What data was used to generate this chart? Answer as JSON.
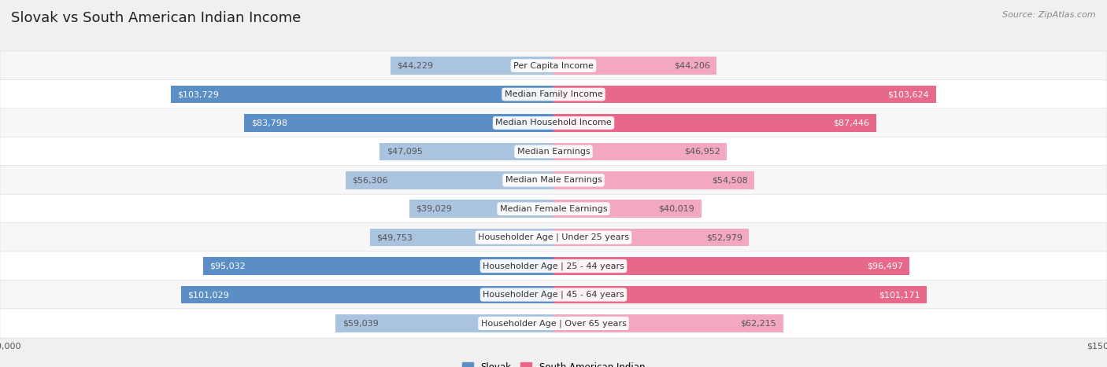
{
  "title": "Slovak vs South American Indian Income",
  "source": "Source: ZipAtlas.com",
  "categories": [
    "Per Capita Income",
    "Median Family Income",
    "Median Household Income",
    "Median Earnings",
    "Median Male Earnings",
    "Median Female Earnings",
    "Householder Age | Under 25 years",
    "Householder Age | 25 - 44 years",
    "Householder Age | 45 - 64 years",
    "Householder Age | Over 65 years"
  ],
  "slovak_values": [
    44229,
    103729,
    83798,
    47095,
    56306,
    39029,
    49753,
    95032,
    101029,
    59039
  ],
  "south_american_values": [
    44206,
    103624,
    87446,
    46952,
    54508,
    40019,
    52979,
    96497,
    101171,
    62215
  ],
  "slovak_labels": [
    "$44,229",
    "$103,729",
    "$83,798",
    "$47,095",
    "$56,306",
    "$39,029",
    "$49,753",
    "$95,032",
    "$101,029",
    "$59,039"
  ],
  "south_american_labels": [
    "$44,206",
    "$103,624",
    "$87,446",
    "$46,952",
    "$54,508",
    "$40,019",
    "$52,979",
    "$96,497",
    "$101,171",
    "$62,215"
  ],
  "max_value": 150000,
  "slovak_color_light": "#aac4e0",
  "slovak_color_dark": "#5b8ec4",
  "south_american_color_light": "#f2a8bf",
  "south_american_color_dark": "#e8688a",
  "bg_color": "#f0f0f0",
  "row_bg_even": "#f7f7f7",
  "row_bg_odd": "#ffffff",
  "threshold_dark": 75000,
  "title_fontsize": 13,
  "source_fontsize": 8,
  "bar_label_fontsize": 8,
  "category_fontsize": 8,
  "axis_label_fontsize": 8
}
